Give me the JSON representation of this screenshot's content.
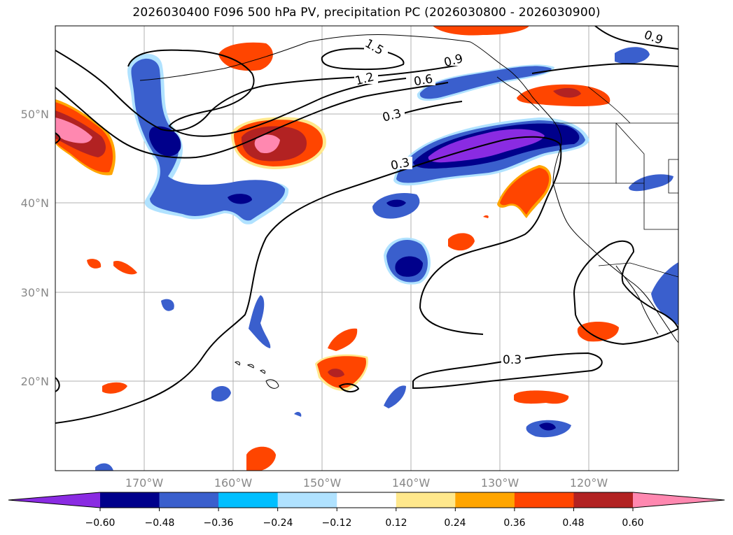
{
  "title": "2026030400 F096 500 hPa PV, precipitation PC (2026030800 - 2026030900)",
  "axes": {
    "lon_ticks": [
      "170°W",
      "160°W",
      "150°W",
      "140°W",
      "130°W",
      "120°W"
    ],
    "lat_ticks": [
      "50°N",
      "40°N",
      "30°N",
      "20°N"
    ],
    "lon_range": [
      -180,
      -110
    ],
    "lat_range": [
      10,
      60
    ],
    "grid": true
  },
  "colorbar": {
    "ticks": [
      "−0.60",
      "−0.48",
      "−0.36",
      "−0.24",
      "−0.12",
      "0.12",
      "0.24",
      "0.36",
      "0.48",
      "0.60"
    ],
    "colors": [
      "#8a2be2",
      "#00008b",
      "#3a5fcd",
      "#00bfff",
      "#b0e2ff",
      "#ffffff",
      "#ffe88c",
      "#ffa500",
      "#ff4500",
      "#b22222",
      "#ff88b0"
    ],
    "extend": "both"
  },
  "contour_labels": [
    "1.5",
    "1.2",
    "0.9",
    "0.6",
    "0.3",
    "0.3",
    "0.3",
    "0.9"
  ],
  "palette": {
    "purple": "#8a2be2",
    "navy": "#00008b",
    "blue": "#3a5fcd",
    "sky": "#00bfff",
    "light": "#b0e2ff",
    "yellow": "#ffe88c",
    "orange": "#ffa500",
    "redorange": "#ff4500",
    "darkred": "#b22222",
    "pink": "#ff88b0"
  }
}
